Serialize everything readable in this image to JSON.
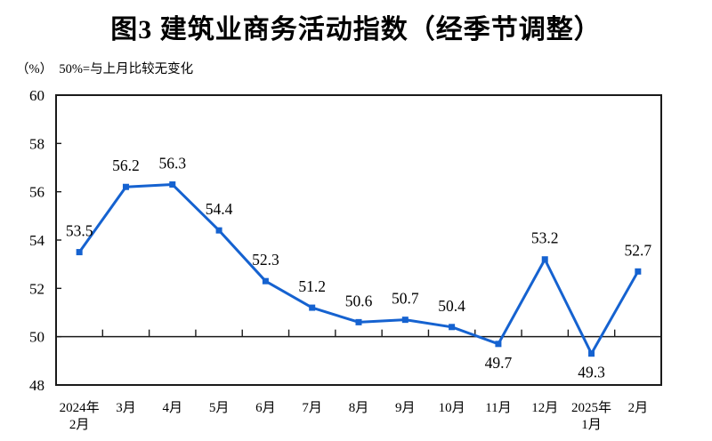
{
  "chart_data": {
    "type": "line",
    "title": "图3  建筑业商务活动指数（经季节调整）",
    "subtitle_note": "（%）  50%=与上月比较无变化",
    "unit": "%",
    "categories": [
      [
        "2024年",
        "2月"
      ],
      "3月",
      "4月",
      "5月",
      "6月",
      "7月",
      "8月",
      "9月",
      "10月",
      "11月",
      "12月",
      [
        "2025年",
        "1月"
      ],
      "2月"
    ],
    "series": [
      {
        "name": "建筑业商务活动指数（经季节调整）",
        "values": [
          53.5,
          56.2,
          56.3,
          54.4,
          52.3,
          51.2,
          50.6,
          50.7,
          50.4,
          49.7,
          53.2,
          49.3,
          52.7
        ]
      }
    ],
    "ylim": [
      48,
      60
    ],
    "ytick_step": 2,
    "yticks": [
      48,
      50,
      52,
      54,
      56,
      58,
      60
    ],
    "reference_line": 50,
    "grid": false,
    "legend": "none",
    "marker": "square",
    "colors": {
      "line": "#1562d0",
      "marker": "#1562d0",
      "axis": "#1a1a1a",
      "text": "#000000"
    }
  }
}
